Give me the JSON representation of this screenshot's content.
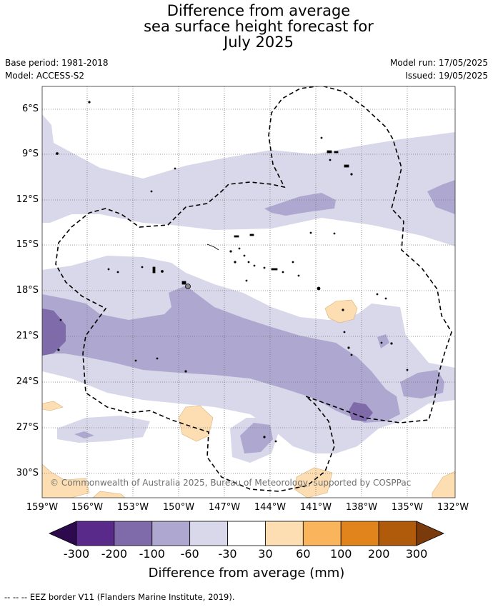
{
  "title_lines": [
    "Difference from average",
    "sea surface height forecast for",
    "July 2025"
  ],
  "meta": {
    "base_period": "Base period: 1981-2018",
    "model": "Model: ACCESS-S2",
    "model_run": "Model run: 17/05/2025",
    "issued": "Issued: 19/05/2025"
  },
  "map": {
    "lat_ticks": [
      "6°S",
      "9°S",
      "12°S",
      "15°S",
      "18°S",
      "21°S",
      "24°S",
      "27°S",
      "30°S"
    ],
    "lon_ticks": [
      "159°W",
      "156°W",
      "153°W",
      "150°W",
      "147°W",
      "144°W",
      "141°W",
      "138°W",
      "135°W",
      "132°W"
    ],
    "credit": "© Commonwealth of Australia 2025, Bureau of Meteorology, supported by COSPPac"
  },
  "colorbar": {
    "title": "Difference from average (mm)",
    "ticks": [
      "-300",
      "-200",
      "-100",
      "-60",
      "-30",
      "30",
      "60",
      "100",
      "200",
      "300"
    ],
    "colors": [
      "#2d0a4e",
      "#5a2a8a",
      "#7f6aaa",
      "#aea8d0",
      "#d8d8ea",
      "#ffffff",
      "#fddeb2",
      "#f9b45c",
      "#e2841c",
      "#b05a0c",
      "#7a3a0c"
    ]
  },
  "footer": "--  --  -- EEZ border V11 (Flanders Marine Institute, 2019)."
}
